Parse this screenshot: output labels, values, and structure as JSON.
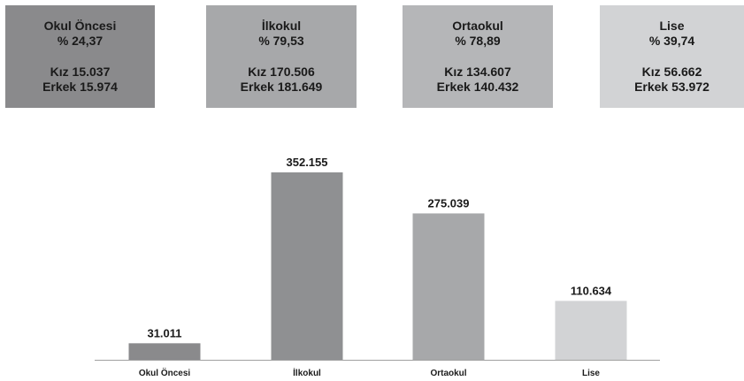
{
  "cards": [
    {
      "title": "Okul Öncesi",
      "percent": "% 24,37",
      "female": "Kız 15.037",
      "male": "Erkek 15.974",
      "color": "#8a8a8c"
    },
    {
      "title": "İlkokul",
      "percent": "% 79,53",
      "female": "Kız 170.506",
      "male": "Erkek 181.649",
      "color": "#a7a8aa"
    },
    {
      "title": "Ortaokul",
      "percent": "% 78,89",
      "female": "Kız 134.607",
      "male": "Erkek 140.432",
      "color": "#b5b6b8"
    },
    {
      "title": "Lise",
      "percent": "% 39,74",
      "female": "Kız 56.662",
      "male": "Erkek 53.972",
      "color": "#d2d3d5"
    }
  ],
  "chart_data": {
    "type": "bar",
    "categories": [
      "Okul Öncesi",
      "İlkokul",
      "Ortaokul",
      "Lise"
    ],
    "values": [
      31011,
      352155,
      275039,
      110634
    ],
    "value_labels": [
      "31.011",
      "352.155",
      "275.039",
      "110.634"
    ],
    "colors": [
      "#8a8a8c",
      "#8f9092",
      "#a7a8aa",
      "#d2d3d5"
    ],
    "title": "",
    "xlabel": "",
    "ylabel": "",
    "ylim": [
      0,
      352155
    ],
    "grid": false,
    "legend": "none"
  },
  "colors": {
    "axis": "#a0a0a0",
    "text": "#1a1a1a"
  }
}
